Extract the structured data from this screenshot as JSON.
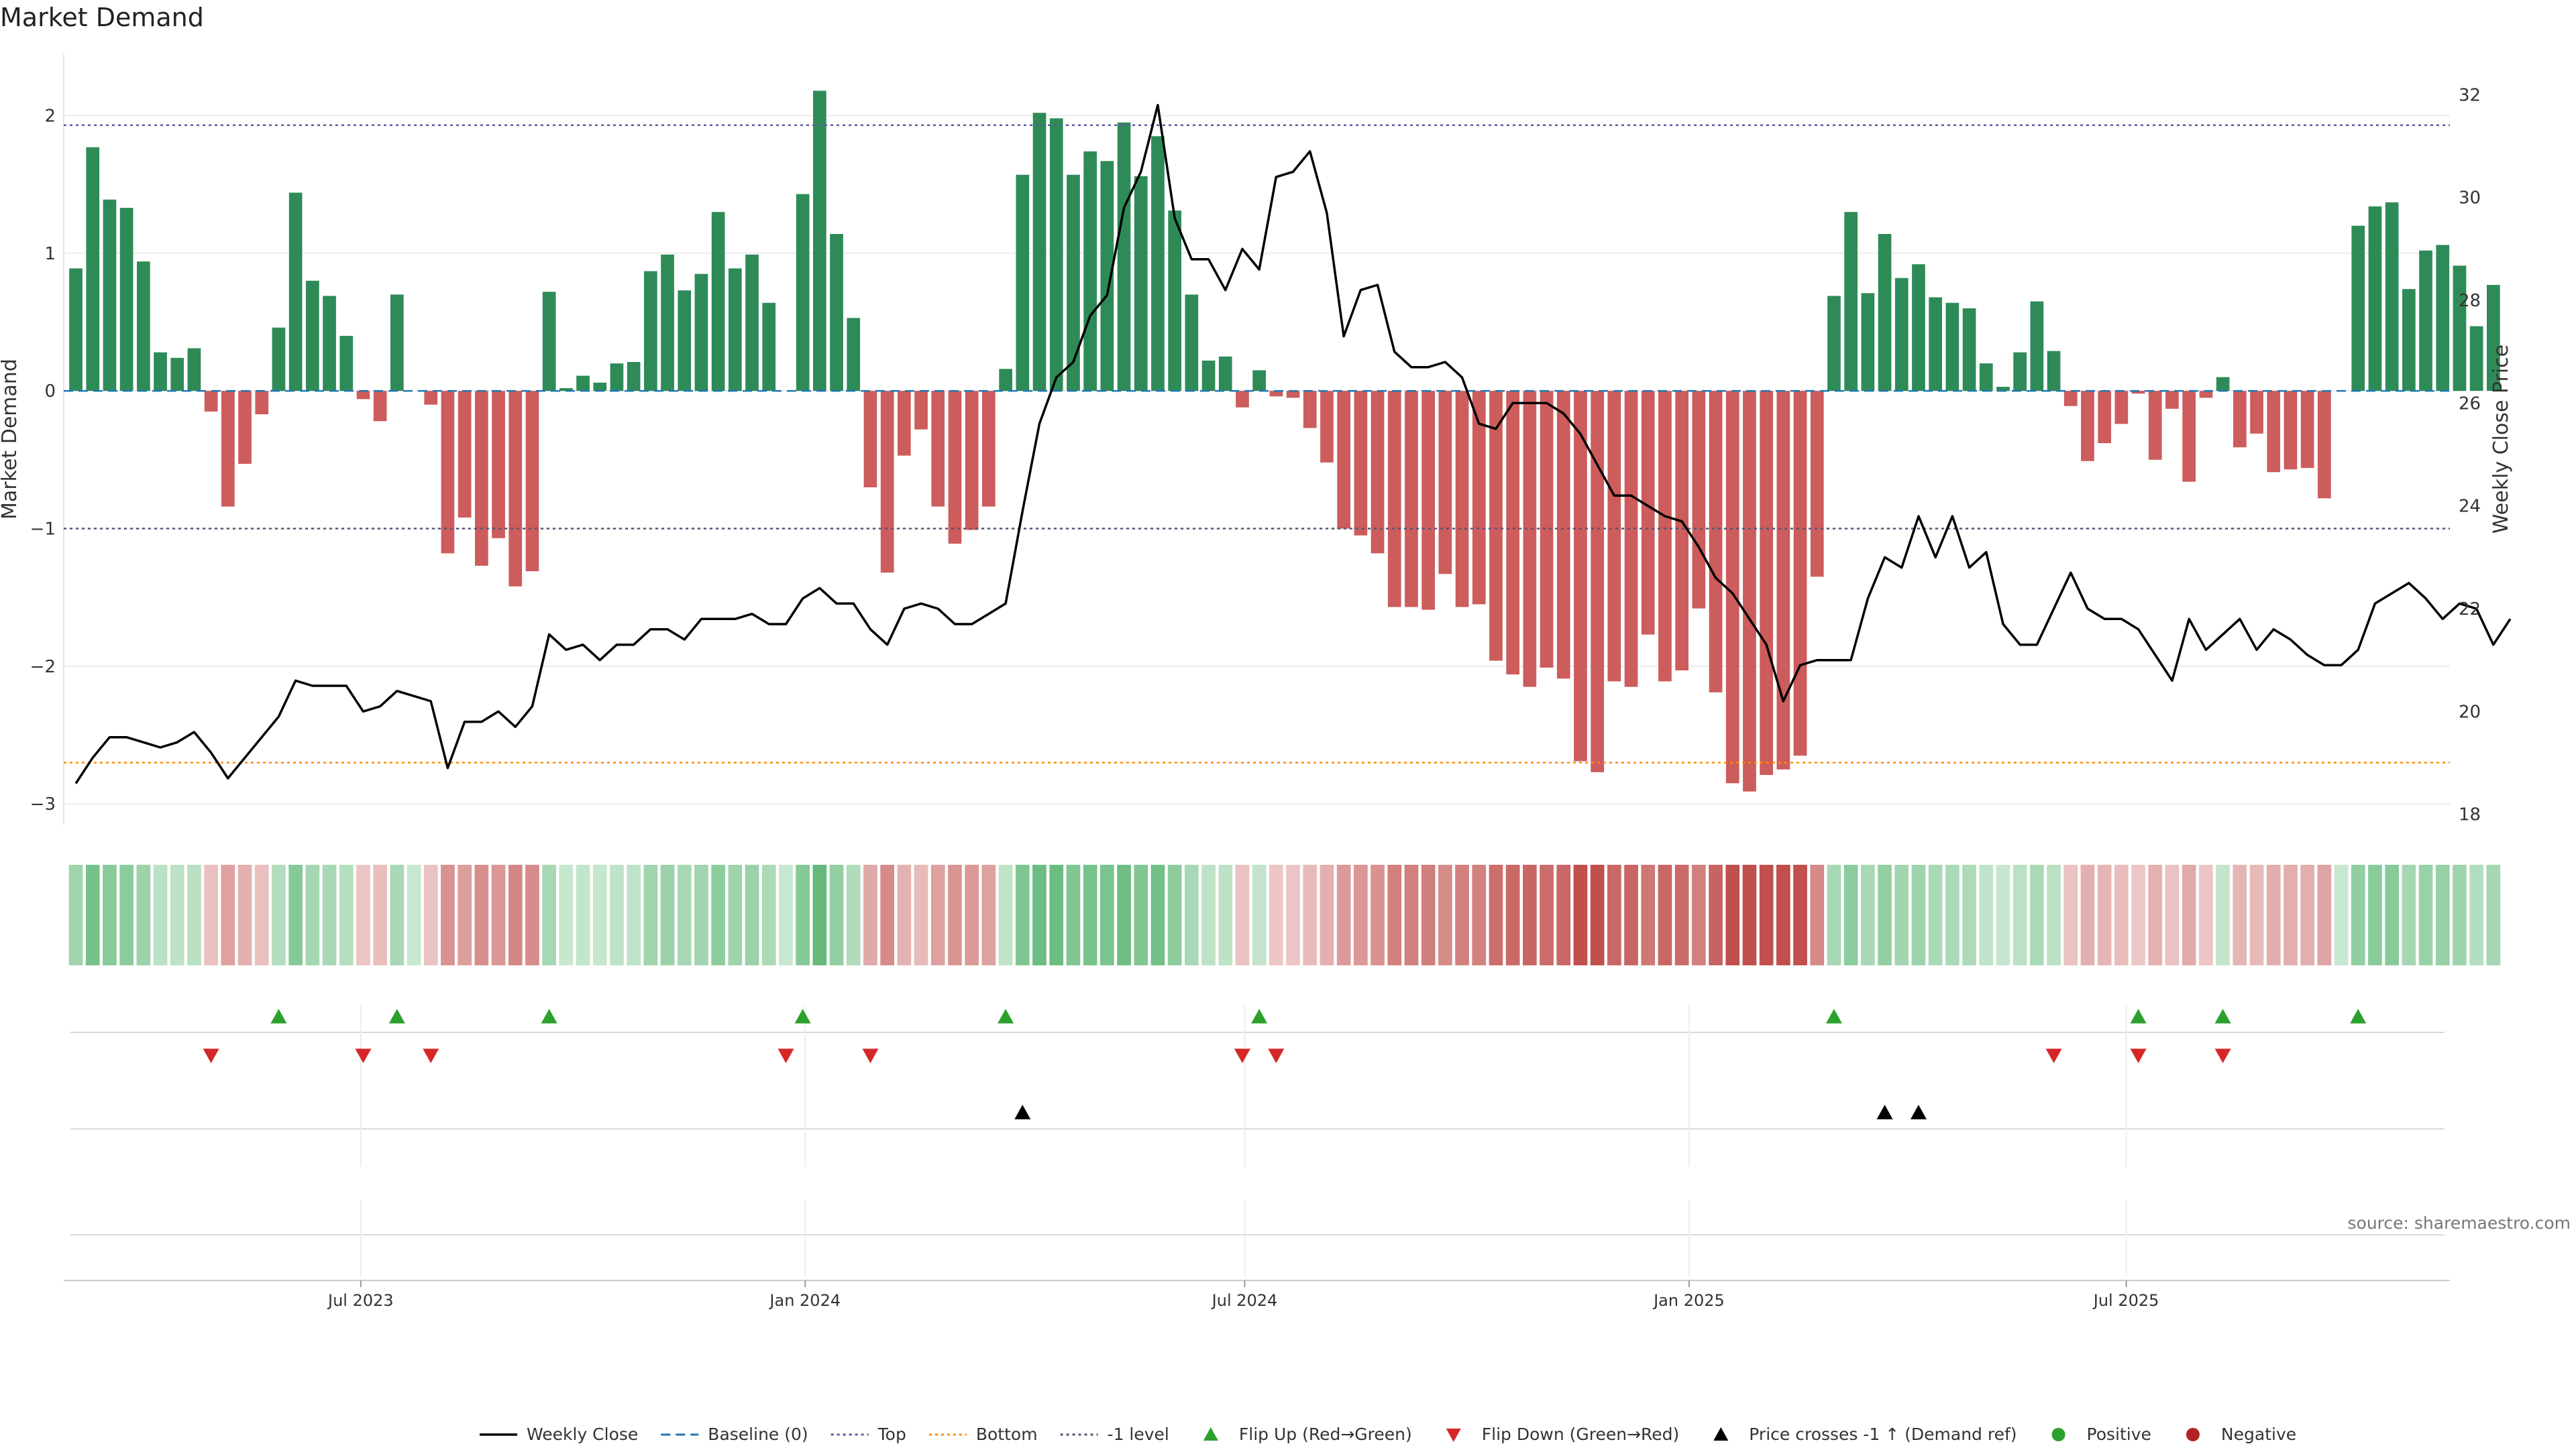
{
  "title": "Market Demand",
  "source": "source: sharemaestro.com",
  "colors": {
    "positive": "#2e8b57",
    "negative": "#cd5c5c",
    "price": "#000000",
    "baseline": "#1f77b4",
    "top": "#5b5b9b",
    "bottom": "#ff8c00",
    "minus1": "#555577",
    "flip_up": "#2ca02c",
    "flip_down": "#d62728",
    "cross": "#000000",
    "positive_dot": "#2ca02c",
    "negative_dot": "#b22222"
  },
  "chart_data": {
    "type": "bar",
    "x_start_date": "2023-03-05",
    "step_days": 7,
    "xlim": [
      "2023-02-28",
      "2025-11-12"
    ],
    "x_ticks": [
      {
        "label": "Jul 2023",
        "date": "2023-07-01"
      },
      {
        "label": "Jan 2024",
        "date": "2024-01-01"
      },
      {
        "label": "Jul 2024",
        "date": "2024-07-01"
      },
      {
        "label": "Jan 2025",
        "date": "2025-01-01"
      },
      {
        "label": "Jul 2025",
        "date": "2025-07-01"
      }
    ],
    "demand": [
      0.89,
      1.77,
      1.39,
      1.33,
      0.94,
      0.28,
      0.24,
      0.31,
      -0.15,
      -0.84,
      -0.53,
      -0.17,
      0.46,
      1.44,
      0.8,
      0.69,
      0.4,
      -0.06,
      -0.22,
      0.7,
      0.0,
      -0.1,
      -1.18,
      -0.92,
      -1.27,
      -1.07,
      -1.42,
      -1.31,
      0.72,
      0.02,
      0.11,
      0.06,
      0.2,
      0.21,
      0.87,
      0.99,
      0.73,
      0.85,
      1.3,
      0.89,
      0.99,
      0.64,
      0.0,
      1.43,
      2.18,
      1.14,
      0.53,
      -0.7,
      -1.32,
      -0.47,
      -0.28,
      -0.84,
      -1.11,
      -1.01,
      -0.84,
      0.16,
      1.57,
      2.02,
      1.98,
      1.57,
      1.74,
      1.67,
      1.95,
      1.56,
      1.85,
      1.31,
      0.7,
      0.22,
      0.25,
      -0.12,
      0.15,
      -0.04,
      -0.05,
      -0.27,
      -0.52,
      -1.0,
      -1.05,
      -1.18,
      -1.57,
      -1.57,
      -1.59,
      -1.33,
      -1.57,
      -1.55,
      -1.96,
      -2.06,
      -2.15,
      -2.01,
      -2.09,
      -2.69,
      -2.77,
      -2.11,
      -2.15,
      -1.77,
      -2.11,
      -2.03,
      -1.58,
      -2.19,
      -2.85,
      -2.91,
      -2.79,
      -2.75,
      -2.65,
      -1.35,
      0.69,
      1.3,
      0.71,
      1.14,
      0.82,
      0.92,
      0.68,
      0.64,
      0.6,
      0.2,
      0.03,
      0.28,
      0.65,
      0.29,
      -0.11,
      -0.51,
      -0.38,
      -0.24,
      -0.02,
      -0.5,
      -0.13,
      -0.66,
      -0.05,
      0.1,
      -0.41,
      -0.31,
      -0.59,
      -0.57,
      -0.56,
      -0.78,
      0.0,
      1.2,
      1.34,
      1.37,
      0.74,
      1.02,
      1.06,
      0.91,
      0.47,
      0.77
    ],
    "price": [
      18.6,
      19.1,
      19.5,
      19.5,
      19.4,
      19.3,
      19.4,
      19.6,
      19.2,
      18.7,
      19.1,
      19.5,
      19.9,
      20.6,
      20.5,
      20.5,
      20.5,
      20.0,
      20.1,
      20.4,
      20.3,
      20.2,
      18.9,
      19.8,
      19.8,
      20.0,
      19.7,
      20.1,
      21.5,
      21.2,
      21.3,
      21.0,
      21.3,
      21.3,
      21.6,
      21.6,
      21.4,
      21.8,
      21.8,
      21.8,
      21.9,
      21.7,
      21.7,
      22.2,
      22.4,
      22.1,
      22.1,
      21.6,
      21.3,
      22.0,
      22.1,
      22.0,
      21.7,
      21.7,
      21.9,
      22.1,
      23.9,
      25.6,
      26.5,
      26.8,
      27.7,
      28.1,
      29.8,
      30.5,
      31.8,
      29.6,
      28.8,
      28.8,
      28.2,
      29.0,
      28.6,
      30.4,
      30.5,
      30.9,
      29.7,
      27.3,
      28.2,
      28.3,
      27.0,
      26.7,
      26.7,
      26.8,
      26.5,
      25.6,
      25.5,
      26.0,
      26.0,
      26.0,
      25.8,
      25.4,
      24.8,
      24.2,
      24.2,
      24.0,
      23.8,
      23.7,
      23.2,
      22.6,
      22.3,
      21.8,
      21.3,
      20.2,
      20.9,
      21.0,
      21.0,
      21.0,
      22.2,
      23.0,
      22.8,
      23.8,
      23.0,
      23.8,
      22.8,
      23.1,
      21.7,
      21.3,
      21.3,
      22.0,
      22.7,
      22.0,
      21.8,
      21.8,
      21.6,
      21.1,
      20.6,
      21.8,
      21.2,
      21.5,
      21.8,
      21.2,
      21.6,
      21.4,
      21.1,
      20.9,
      20.9,
      21.2,
      22.1,
      22.3,
      22.5,
      22.2,
      21.8,
      22.1,
      22.0,
      21.3,
      21.8
    ],
    "lines": {
      "baseline": 0,
      "top": 1.93,
      "bottom": -2.7,
      "minus1": -1
    },
    "ylim_left": [
      -3.15,
      2.45
    ],
    "ylim_right": [
      17.8,
      32.8
    ],
    "y_ticks_left": [
      2,
      1,
      0,
      -1,
      -2,
      -3
    ],
    "y_ticks_left_labels": [
      "2",
      "1",
      "0",
      "−1",
      "−2",
      "−3"
    ],
    "y_ticks_right": [
      32,
      30,
      28,
      26,
      24,
      22,
      20,
      18
    ],
    "ylabel_left": "Market Demand",
    "ylabel_right": "Weekly Close Price",
    "flip_up_idx": [
      12,
      19,
      28,
      43,
      55,
      70,
      104,
      122,
      127,
      135
    ],
    "flip_down_idx": [
      8,
      17,
      21,
      42,
      47,
      69,
      71,
      117,
      122,
      127
    ],
    "cross_idx": [
      56,
      107,
      109
    ],
    "legend": [
      {
        "label": "Weekly Close",
        "kind": "line"
      },
      {
        "label": "Baseline (0)",
        "kind": "dashed"
      },
      {
        "label": "Top",
        "kind": "dotted-top"
      },
      {
        "label": "Bottom",
        "kind": "dotted-bottom"
      },
      {
        "label": "-1 level",
        "kind": "dotted-minus1"
      },
      {
        "label": "Flip Up (Red→Green)",
        "kind": "tri-up"
      },
      {
        "label": "Flip Down (Green→Red)",
        "kind": "tri-down"
      },
      {
        "label": "Price crosses -1 ↑ (Demand ref)",
        "kind": "tri-black"
      },
      {
        "label": "Positive",
        "kind": "dot-pos"
      },
      {
        "label": "Negative",
        "kind": "dot-neg"
      }
    ]
  }
}
